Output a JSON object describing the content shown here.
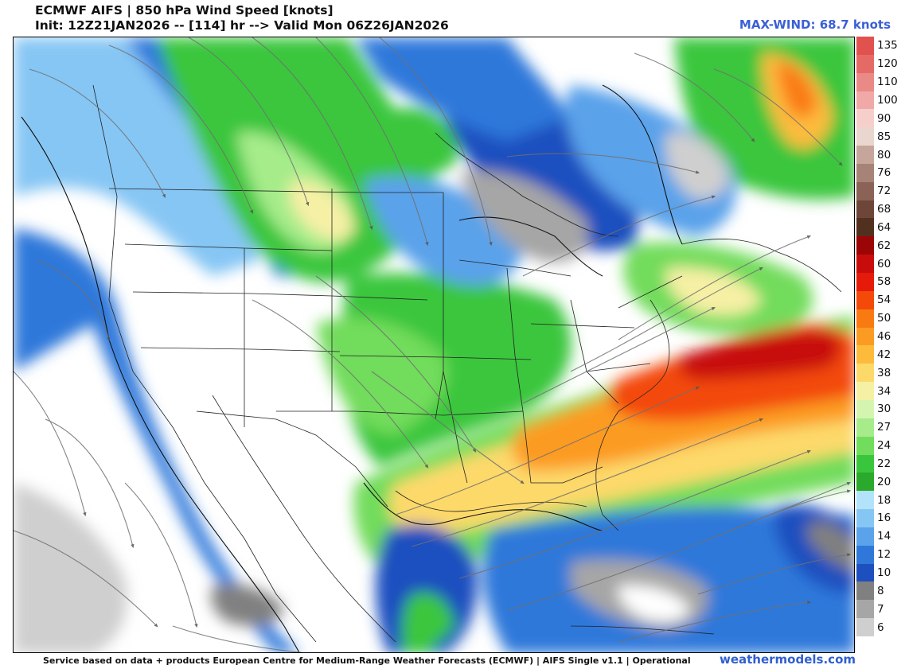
{
  "header": {
    "title_line1": "ECMWF AIFS | 850 hPa Wind Speed [knots]",
    "title_line2": "Init: 12Z21JAN2026 -- [114] hr --> Valid Mon 06Z26JAN2026",
    "max_wind": "MAX-WIND: 68.7 knots"
  },
  "colorbar": {
    "levels": [
      {
        "label": "135",
        "color": "#e1524e"
      },
      {
        "label": "120",
        "color": "#e56a66"
      },
      {
        "label": "110",
        "color": "#ea8a87"
      },
      {
        "label": "100",
        "color": "#f0a9a7"
      },
      {
        "label": "90",
        "color": "#f6cfcb"
      },
      {
        "label": "85",
        "color": "#e9d6cf"
      },
      {
        "label": "80",
        "color": "#c6a69b"
      },
      {
        "label": "76",
        "color": "#a78276"
      },
      {
        "label": "72",
        "color": "#8a6356"
      },
      {
        "label": "68",
        "color": "#6e4639"
      },
      {
        "label": "64",
        "color": "#52301f"
      },
      {
        "label": "62",
        "color": "#9c0505"
      },
      {
        "label": "60",
        "color": "#c80c0c"
      },
      {
        "label": "58",
        "color": "#e51a0a"
      },
      {
        "label": "54",
        "color": "#f34a0a"
      },
      {
        "label": "50",
        "color": "#fa7a12"
      },
      {
        "label": "46",
        "color": "#fc9b23"
      },
      {
        "label": "42",
        "color": "#fdbb3c"
      },
      {
        "label": "38",
        "color": "#fdd96a"
      },
      {
        "label": "34",
        "color": "#f6f0a5"
      },
      {
        "label": "30",
        "color": "#d4f5b0"
      },
      {
        "label": "27",
        "color": "#a6ec8b"
      },
      {
        "label": "24",
        "color": "#72dc5c"
      },
      {
        "label": "22",
        "color": "#3ac63c"
      },
      {
        "label": "20",
        "color": "#2aa92c"
      },
      {
        "label": "18",
        "color": "#b3e3fb"
      },
      {
        "label": "16",
        "color": "#86c6f4"
      },
      {
        "label": "14",
        "color": "#5aa2ea"
      },
      {
        "label": "12",
        "color": "#2f78da"
      },
      {
        "label": "10",
        "color": "#1e4fbf"
      },
      {
        "label": "8",
        "color": "#808080"
      },
      {
        "label": "7",
        "color": "#a6a6a6"
      },
      {
        "label": "6",
        "color": "#cfcfcf"
      }
    ]
  },
  "footer": {
    "credit": "Service based on data + products European Centre for Medium-Range Weather Forecasts (ECMWF) | AIFS Single v1.1 | Operational",
    "brand": "weathermodels.com"
  }
}
